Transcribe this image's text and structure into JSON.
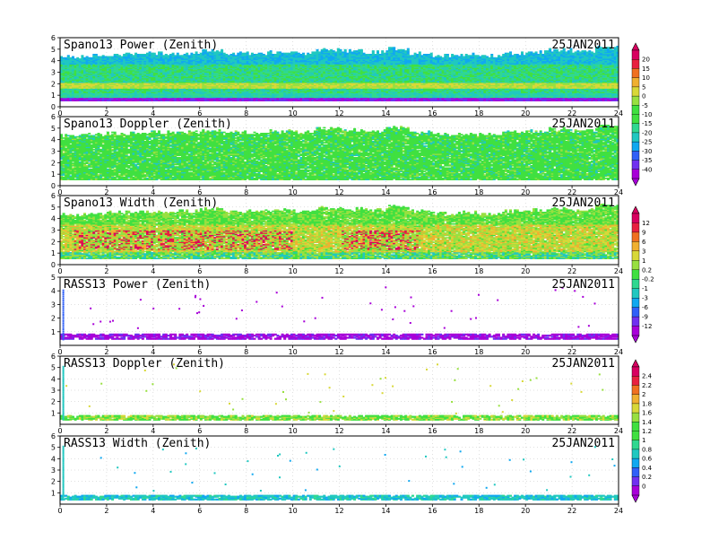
{
  "chart_data": [
    {
      "type": "heatmap",
      "title": "Spano13 Power (Zenith)",
      "date": "25JAN2011",
      "xlim": [
        0,
        24
      ],
      "ylim": [
        0,
        6
      ],
      "xticks": [
        "0",
        "2",
        "4",
        "6",
        "8",
        "10",
        "12",
        "14",
        "16",
        "18",
        "20",
        "22",
        "24"
      ],
      "yticks": [
        "0",
        "1",
        "2",
        "3",
        "4",
        "5",
        "6"
      ],
      "field": "power",
      "top_profile_km": [
        4.3,
        4.4,
        4.5,
        4.6,
        4.6,
        4.6,
        4.8,
        4.6,
        4.6,
        4.7,
        4.6,
        4.9,
        4.8,
        4.7,
        5.0,
        4.6,
        4.4,
        4.5,
        4.4,
        4.6,
        4.7,
        4.9,
        4.7,
        5.1
      ]
    },
    {
      "type": "heatmap",
      "title": "Spano13 Doppler (Zenith)",
      "date": "25JAN2011",
      "xlim": [
        0,
        24
      ],
      "ylim": [
        0,
        6
      ],
      "xticks": [
        "0",
        "2",
        "4",
        "6",
        "8",
        "10",
        "12",
        "14",
        "16",
        "18",
        "20",
        "22",
        "24"
      ],
      "yticks": [
        "0",
        "1",
        "2",
        "3",
        "4",
        "5",
        "6"
      ],
      "field": "doppler",
      "top_profile_km": [
        4.3,
        4.4,
        4.5,
        4.6,
        4.6,
        4.6,
        4.8,
        4.6,
        4.6,
        4.7,
        4.6,
        4.9,
        4.8,
        4.7,
        5.0,
        4.6,
        4.4,
        4.5,
        4.4,
        4.6,
        4.7,
        4.9,
        4.7,
        5.1
      ]
    },
    {
      "type": "heatmap",
      "title": "Spano13 Width (Zenith)",
      "date": "25JAN2011",
      "xlim": [
        0,
        24
      ],
      "ylim": [
        0,
        6
      ],
      "xticks": [
        "0",
        "2",
        "4",
        "6",
        "8",
        "10",
        "12",
        "14",
        "16",
        "18",
        "20",
        "22",
        "24"
      ],
      "yticks": [
        "0",
        "1",
        "2",
        "3",
        "4",
        "5",
        "6"
      ],
      "field": "width",
      "top_profile_km": [
        4.3,
        4.4,
        4.5,
        4.6,
        4.6,
        4.6,
        4.8,
        4.6,
        4.6,
        4.7,
        4.6,
        4.9,
        4.8,
        4.7,
        5.0,
        4.6,
        4.4,
        4.5,
        4.4,
        4.6,
        4.7,
        4.9,
        4.7,
        5.1
      ]
    },
    {
      "type": "scatter",
      "title": "RASS13 Power (Zenith)",
      "date": "25JAN2011",
      "xlim": [
        0,
        24
      ],
      "ylim": [
        0,
        5
      ],
      "xticks": [
        "0",
        "2",
        "4",
        "6",
        "8",
        "10",
        "12",
        "14",
        "16",
        "18",
        "20",
        "22",
        "24"
      ],
      "yticks": [
        "1",
        "2",
        "3",
        "4",
        "5"
      ],
      "field": "rass_power",
      "band_km": [
        0.55,
        0.9
      ]
    },
    {
      "type": "scatter",
      "title": "RASS13 Doppler (Zenith)",
      "date": "25JAN2011",
      "xlim": [
        0,
        24
      ],
      "ylim": [
        0,
        6
      ],
      "xticks": [
        "0",
        "2",
        "4",
        "6",
        "8",
        "10",
        "12",
        "14",
        "16",
        "18",
        "20",
        "22",
        "24"
      ],
      "yticks": [
        "1",
        "2",
        "3",
        "4",
        "5",
        "6"
      ],
      "field": "rass_doppler",
      "band_km": [
        0.5,
        0.85
      ]
    },
    {
      "type": "scatter",
      "title": "RASS13 Width (Zenith)",
      "date": "25JAN2011",
      "xlim": [
        0,
        24
      ],
      "ylim": [
        0,
        6
      ],
      "xticks": [
        "0",
        "2",
        "4",
        "6",
        "8",
        "10",
        "12",
        "14",
        "16",
        "18",
        "20",
        "22",
        "24"
      ],
      "yticks": [
        "1",
        "2",
        "3",
        "4",
        "5",
        "6"
      ],
      "field": "rass_width",
      "band_km": [
        0.5,
        0.85
      ]
    }
  ],
  "colorbars": [
    {
      "labels": [
        "20",
        "15",
        "10",
        "5",
        "0",
        "-5",
        "-10",
        "-15",
        "-20",
        "-25",
        "-30",
        "-35",
        "-40"
      ]
    },
    {
      "labels": [
        "12",
        "9",
        "6",
        "3",
        "1",
        "0.2",
        "-0.2",
        "-1",
        "-3",
        "-6",
        "-9",
        "-12"
      ]
    },
    {
      "labels": [
        "2.4",
        "2.2",
        "2",
        "1.8",
        "1.6",
        "1.4",
        "1.2",
        "1",
        "0.8",
        "0.6",
        "0.4",
        "0.2",
        "0"
      ]
    }
  ],
  "colors": {
    "palette": [
      "#a800d8",
      "#7030f0",
      "#3060f8",
      "#10a8f0",
      "#20c8c0",
      "#30d890",
      "#40e040",
      "#98e040",
      "#d8d838",
      "#f0b030",
      "#f07020",
      "#e82040",
      "#d80060"
    ]
  }
}
